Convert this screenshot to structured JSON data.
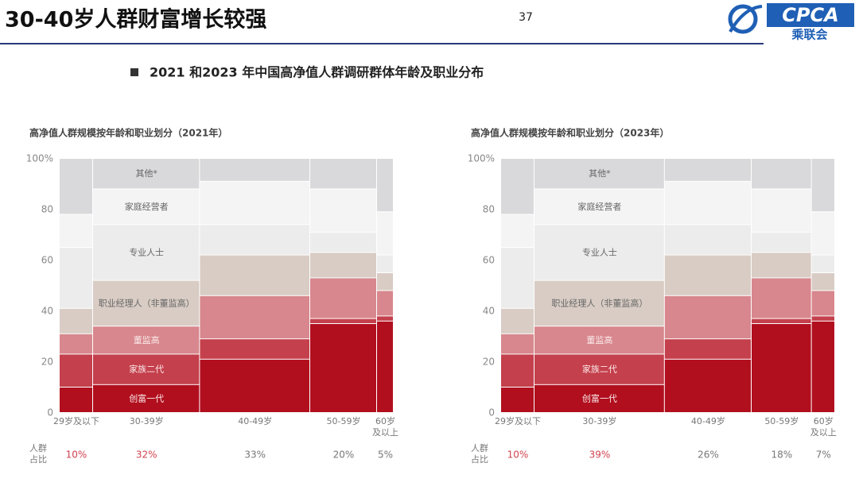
{
  "header": {
    "title": "30-40岁人群财富增长较强",
    "page_number": "37",
    "logo_text": "CPCA",
    "logo_subtext": "乘联会"
  },
  "subtitle": "2021 和2023 年中国高净值人群调研群体年龄及职业分布",
  "chart_data": [
    {
      "type": "marimekko",
      "title": "高净值人群规模按年龄和职业划分（2021年）",
      "categories": [
        "29岁及以下",
        "30-39岁",
        "40-49岁",
        "50-59岁",
        "60岁\n及以上"
      ],
      "widths": [
        10,
        32,
        33,
        20,
        5
      ],
      "width_labels": [
        "10%",
        "32%",
        "33%",
        "20%",
        "5%"
      ],
      "width_label_colors": [
        "#d0434f",
        "#d0434f",
        "#777777",
        "#777777",
        "#777777"
      ],
      "width_title": "人群\n占比",
      "ylim": [
        0,
        100
      ],
      "yticks": [
        0,
        20,
        40,
        60,
        80,
        {
          "value": 100,
          "label": "100%"
        }
      ],
      "series": [
        {
          "name": "创富一代",
          "color": "#b10f1e",
          "values": [
            10,
            11,
            21,
            35,
            36
          ]
        },
        {
          "name": "家族二代",
          "color": "#c4404c",
          "values": [
            13,
            12,
            8,
            2,
            2
          ]
        },
        {
          "name": "董监高",
          "color": "#d7878d",
          "values": [
            8,
            11,
            17,
            16,
            10
          ]
        },
        {
          "name": "职业经理人（非董监高）",
          "color": "#d8ccc4",
          "values": [
            10,
            18,
            16,
            10,
            7
          ]
        },
        {
          "name": "专业人士",
          "color": "#ececec",
          "values": [
            24,
            22,
            12,
            8,
            7
          ]
        },
        {
          "name": "家庭经营者",
          "color": "#f4f4f4",
          "values": [
            13,
            14,
            17,
            17,
            17
          ]
        },
        {
          "name": "其他*",
          "color": "#d9d9db",
          "values": [
            22,
            12,
            9,
            12,
            21
          ]
        }
      ]
    },
    {
      "type": "marimekko",
      "title": "高净值人群规模按年龄和职业划分（2023年）",
      "categories": [
        "29岁及以下",
        "30-39岁",
        "40-49岁",
        "50-59岁",
        "60岁\n及以上"
      ],
      "widths": [
        10,
        39,
        26,
        18,
        7
      ],
      "width_labels": [
        "10%",
        "39%",
        "26%",
        "18%",
        "7%"
      ],
      "width_label_colors": [
        "#d0434f",
        "#d0434f",
        "#777777",
        "#777777",
        "#777777"
      ],
      "width_title": "人群\n占比",
      "ylim": [
        0,
        100
      ],
      "yticks": [
        0,
        20,
        40,
        60,
        80,
        {
          "value": 100,
          "label": "100%"
        }
      ],
      "series": [
        {
          "name": "创富一代",
          "color": "#b10f1e",
          "values": [
            10,
            11,
            21,
            35,
            36
          ]
        },
        {
          "name": "家族二代",
          "color": "#c4404c",
          "values": [
            13,
            12,
            8,
            2,
            2
          ]
        },
        {
          "name": "董监高",
          "color": "#d7878d",
          "values": [
            8,
            11,
            17,
            16,
            10
          ]
        },
        {
          "name": "职业经理人（非董监高）",
          "color": "#d8ccc4",
          "values": [
            10,
            18,
            16,
            10,
            7
          ]
        },
        {
          "name": "专业人士",
          "color": "#ececec",
          "values": [
            24,
            22,
            12,
            8,
            7
          ]
        },
        {
          "name": "家庭经营者",
          "color": "#f4f4f4",
          "values": [
            13,
            14,
            17,
            17,
            17
          ]
        },
        {
          "name": "其他*",
          "color": "#d9d9db",
          "values": [
            22,
            12,
            9,
            12,
            21
          ]
        }
      ]
    }
  ]
}
